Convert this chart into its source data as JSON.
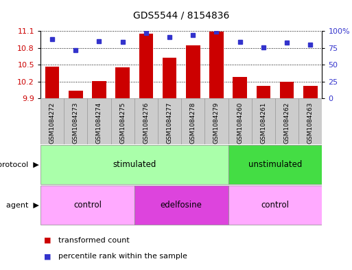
{
  "title": "GDS5544 / 8154836",
  "samples": [
    "GSM1084272",
    "GSM1084273",
    "GSM1084274",
    "GSM1084275",
    "GSM1084276",
    "GSM1084277",
    "GSM1084278",
    "GSM1084279",
    "GSM1084260",
    "GSM1084261",
    "GSM1084262",
    "GSM1084263"
  ],
  "bar_values": [
    10.47,
    10.04,
    10.21,
    10.45,
    11.05,
    10.62,
    10.85,
    11.09,
    10.28,
    10.12,
    10.2,
    10.13
  ],
  "bar_bottom": 9.9,
  "blue_dot_values": [
    88,
    72,
    85,
    84,
    97,
    91,
    94,
    99,
    84,
    76,
    83,
    80
  ],
  "ylim_left": [
    9.9,
    11.1
  ],
  "ylim_right": [
    0,
    100
  ],
  "yticks_left": [
    9.9,
    10.2,
    10.5,
    10.8,
    11.1
  ],
  "yticks_right": [
    0,
    25,
    50,
    75,
    100
  ],
  "bar_color": "#cc0000",
  "dot_color": "#3333cc",
  "grid_color": "#000000",
  "protocol_groups": [
    {
      "label": "stimulated",
      "start": 0,
      "end": 7,
      "color": "#aaffaa"
    },
    {
      "label": "unstimulated",
      "start": 8,
      "end": 11,
      "color": "#44dd44"
    }
  ],
  "agent_groups": [
    {
      "label": "control",
      "start": 0,
      "end": 3,
      "color": "#ffaaff"
    },
    {
      "label": "edelfosine",
      "start": 4,
      "end": 7,
      "color": "#dd44dd"
    },
    {
      "label": "control",
      "start": 8,
      "end": 11,
      "color": "#ffaaff"
    }
  ],
  "protocol_label": "protocol",
  "agent_label": "agent",
  "legend_bar_label": "transformed count",
  "legend_dot_label": "percentile rank within the sample",
  "sample_box_color": "#cccccc",
  "sample_box_edge": "#999999"
}
